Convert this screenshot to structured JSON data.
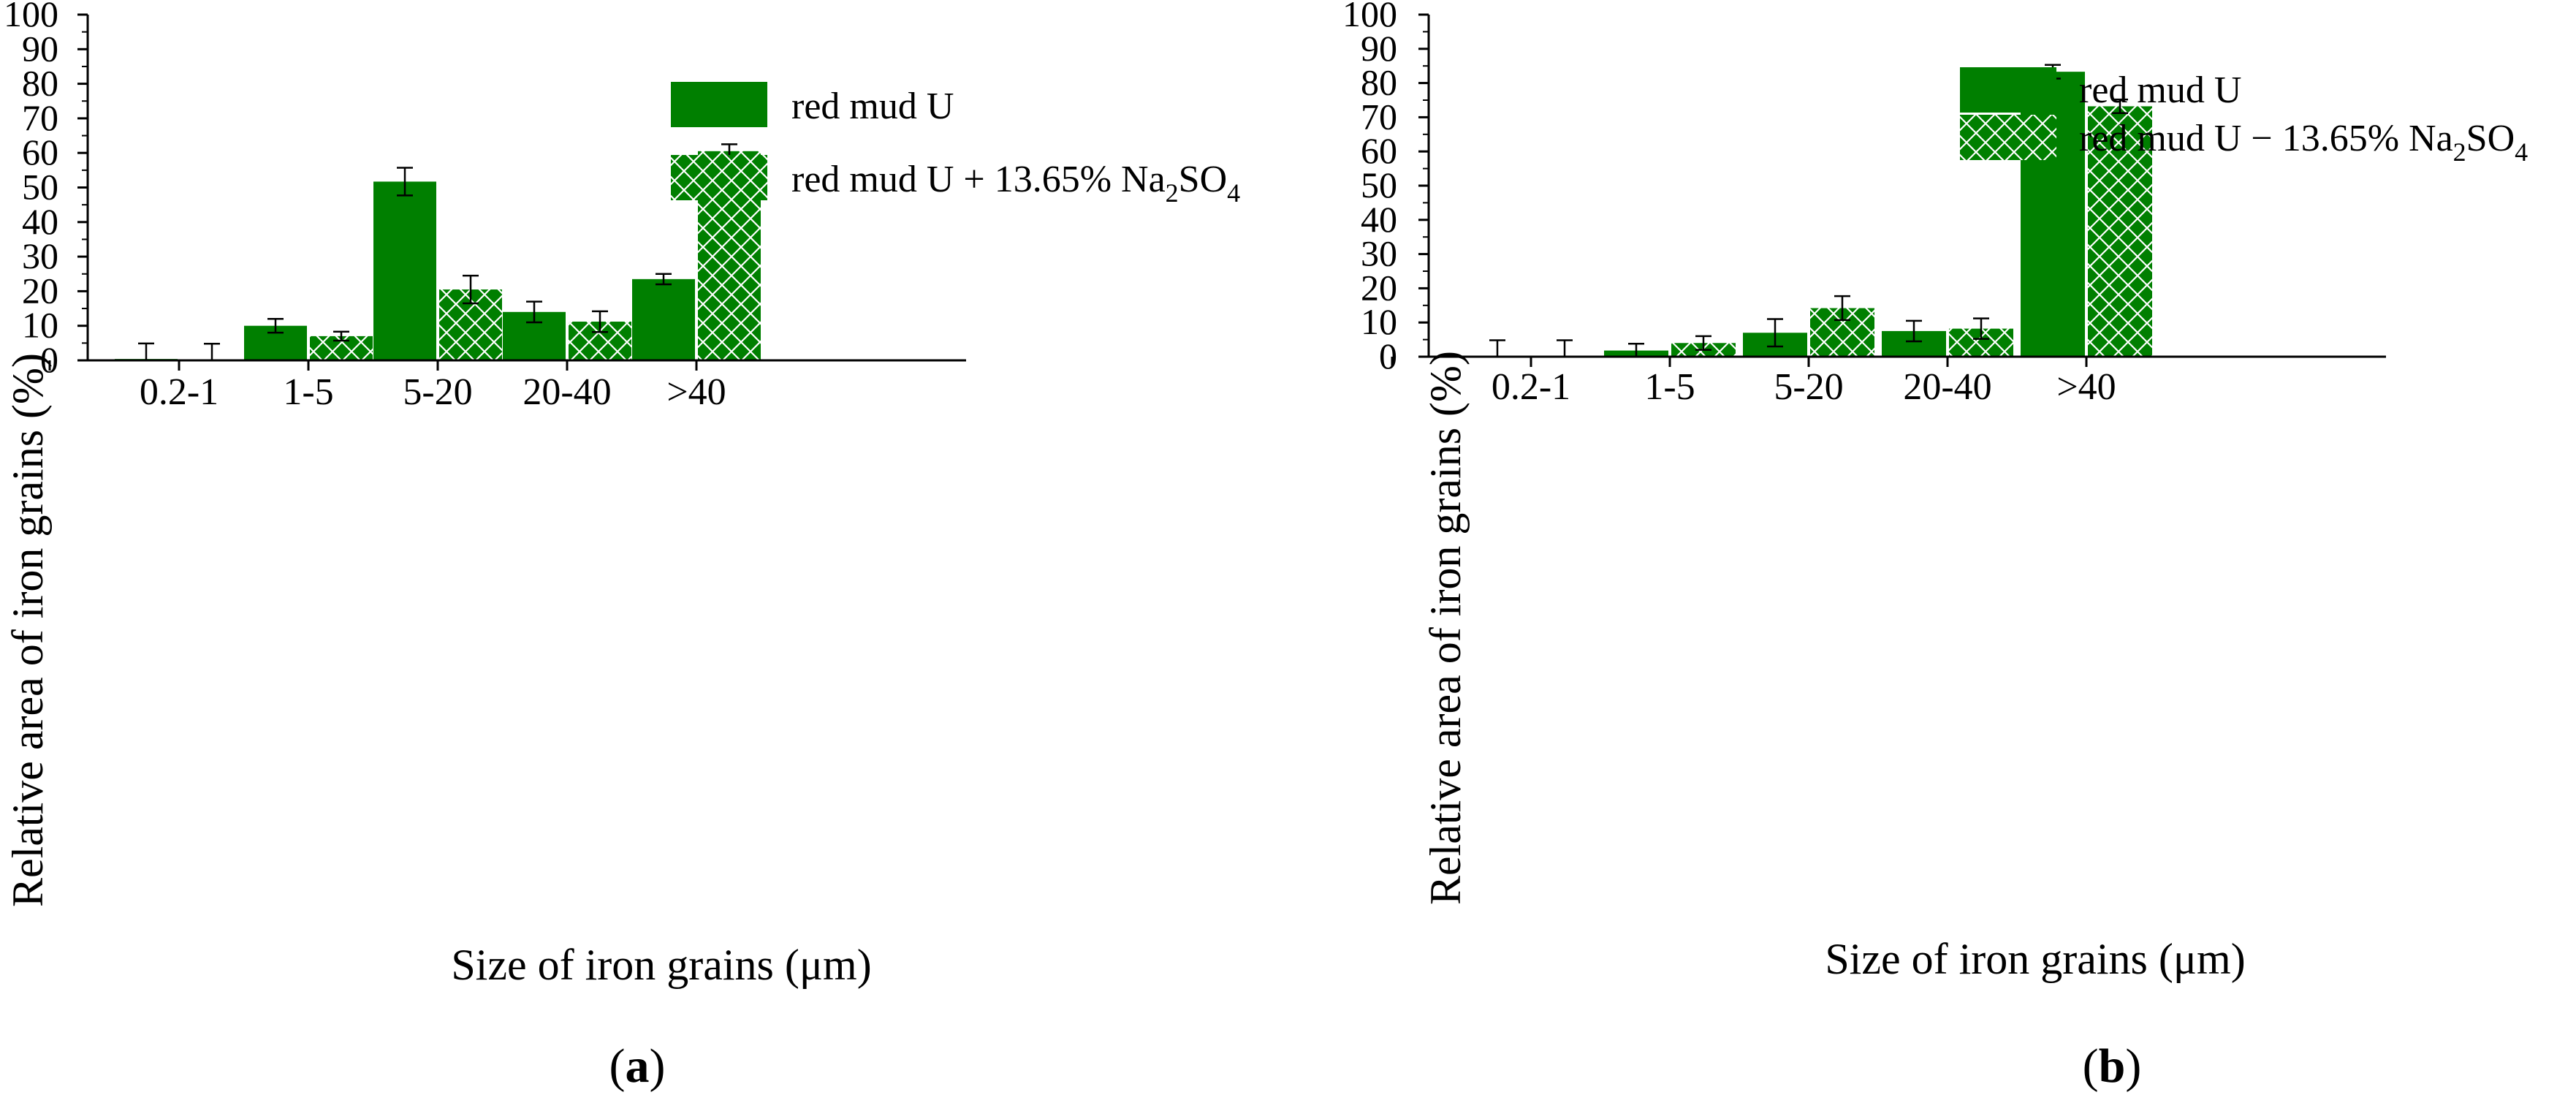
{
  "panels": [
    {
      "label": "a",
      "legend": {
        "entry1": {
          "text": "red mud U"
        },
        "entry2": {
          "prefix": "red mud U + 13.65% Na",
          "sub1": "2",
          "mid": "SO",
          "sub2": "4"
        }
      }
    },
    {
      "label": "b",
      "legend": {
        "entry1": {
          "text": "red mud U"
        },
        "entry2": {
          "prefix": "red mud U − 13.65% Na",
          "sub1": "2",
          "mid": "SO",
          "sub2": "4"
        }
      }
    }
  ],
  "colors": {
    "bar_fill": "#007f00",
    "hatch_line": "#ffffff",
    "axis": "#000000"
  },
  "chart_data": [
    {
      "type": "bar",
      "title": "",
      "xlabel": "Size of iron grains (μm)",
      "ylabel": "Relative area of iron grains (%)",
      "ylim": [
        0,
        100
      ],
      "yticks": [
        0,
        10,
        20,
        30,
        40,
        50,
        60,
        70,
        80,
        90,
        100
      ],
      "categories": [
        "0.2-1",
        "1-5",
        "5-20",
        "20-40",
        ">40"
      ],
      "legend_position": "top-right",
      "series": [
        {
          "name": "red mud U",
          "pattern": "solid",
          "values": [
            0.4,
            10.0,
            51.7,
            14.0,
            23.5
          ],
          "errors": [
            4.5,
            2.0,
            4.0,
            3.0,
            1.5
          ]
        },
        {
          "name": "red mud U + 13.65% Na2SO4",
          "pattern": "hatched",
          "values": [
            0.3,
            7.0,
            20.5,
            11.2,
            60.5
          ],
          "errors": [
            4.5,
            1.3,
            4.0,
            3.0,
            2.0
          ]
        }
      ]
    },
    {
      "type": "bar",
      "title": "",
      "xlabel": "Size of iron grains (μm)",
      "ylabel": "Relative area of iron grains (%)",
      "ylim": [
        0,
        100
      ],
      "yticks": [
        0,
        10,
        20,
        30,
        40,
        50,
        60,
        70,
        80,
        90,
        100
      ],
      "categories": [
        "0.2-1",
        "1-5",
        "5-20",
        "20-40",
        ">40"
      ],
      "legend_position": "top-left",
      "series": [
        {
          "name": "red mud U",
          "pattern": "solid",
          "values": [
            0.3,
            1.8,
            7.0,
            7.5,
            83.3
          ],
          "errors": [
            4.5,
            2.0,
            4.0,
            3.0,
            2.0
          ]
        },
        {
          "name": "red mud U − 13.65% Na2SO4",
          "pattern": "hatched",
          "values": [
            0.3,
            4.0,
            14.2,
            8.2,
            73.2
          ],
          "errors": [
            4.5,
            2.0,
            3.5,
            3.0,
            2.0
          ]
        }
      ]
    }
  ]
}
